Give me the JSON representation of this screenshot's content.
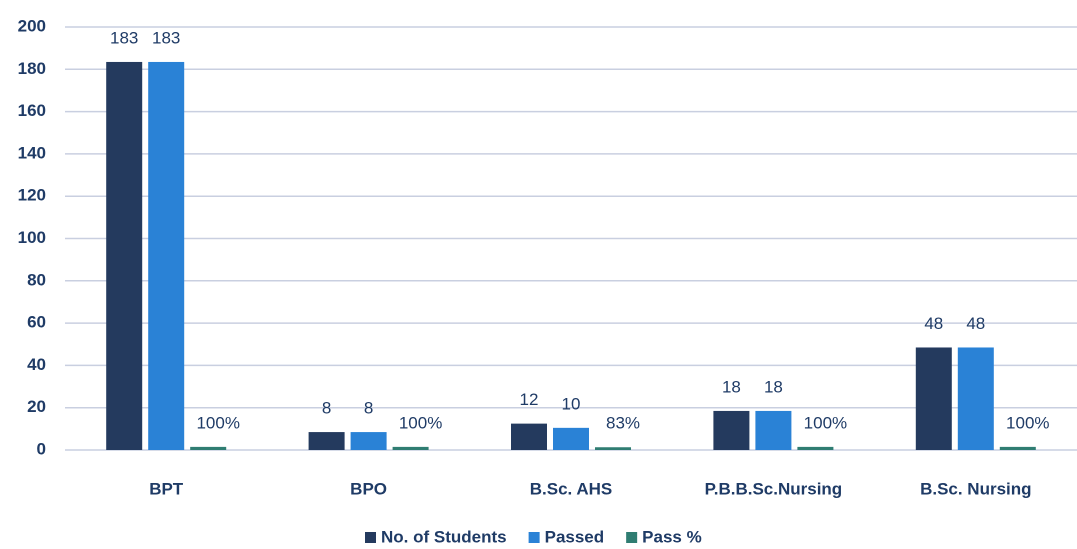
{
  "chart_data": {
    "type": "bar",
    "categories": [
      "BPT",
      "BPO",
      "B.Sc. AHS",
      "P.B.B.Sc.Nursing",
      "B.Sc. Nursing"
    ],
    "series": [
      {
        "name": "No. of Students",
        "color": "#243a5e",
        "values": [
          183,
          8,
          12,
          18,
          48
        ]
      },
      {
        "name": "Passed",
        "color": "#2a82d6",
        "values": [
          183,
          8,
          10,
          18,
          48
        ]
      },
      {
        "name": "Pass %",
        "color": "#2f7d72",
        "values": [
          1,
          1,
          0.83,
          1,
          1
        ],
        "value_labels": [
          "100%",
          "100%",
          "83%",
          "100%",
          "100%"
        ]
      }
    ],
    "ylim": [
      0,
      200
    ],
    "yticks": [
      0,
      20,
      40,
      60,
      80,
      100,
      120,
      140,
      160,
      180,
      200
    ],
    "grid": true,
    "legend": "bottom"
  }
}
